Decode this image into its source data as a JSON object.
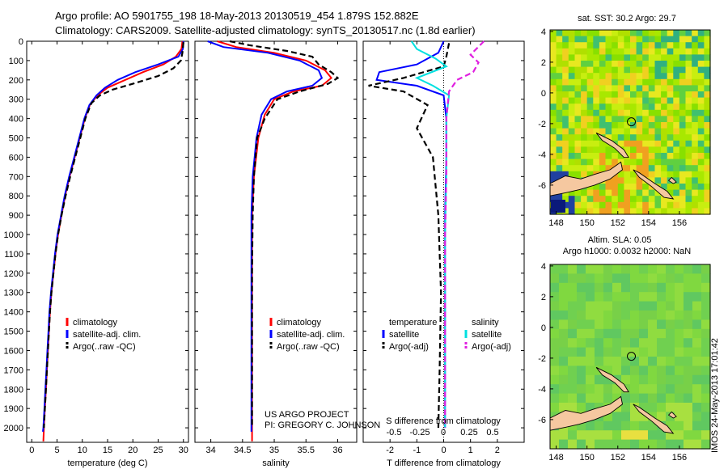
{
  "header": {
    "line1": "Argo profile: AO 5901755_198 18-May-2013 20130519_454 1.879S 152.882E",
    "line2": "Climatology: CARS2009. Satellite-adjusted climatology: synTS_20130517.nc (1.8d earlier)"
  },
  "colors": {
    "climatology": "#ff0000",
    "satellite": "#0000ff",
    "argo": "#000000",
    "cyan": "#00e0e0",
    "magenta": "#e020e0",
    "land": "#f5c8a0"
  },
  "chart_data": [
    {
      "type": "line",
      "panel": "temperature",
      "xlabel": "temperature (deg C)",
      "ylabel": "",
      "xlim": [
        -1,
        31
      ],
      "ylim": [
        0,
        2075
      ],
      "y_inverted": true,
      "xticks": [
        0,
        5,
        10,
        15,
        20,
        25,
        30
      ],
      "yticks": [
        0,
        100,
        200,
        300,
        400,
        500,
        600,
        700,
        800,
        900,
        1000,
        1100,
        1200,
        1300,
        1400,
        1500,
        1600,
        1700,
        1800,
        1900,
        2000
      ],
      "legend": [
        "climatology",
        "satellite-adj. clim.",
        "Argo(..raw -QC)"
      ],
      "series": [
        {
          "name": "climatology",
          "color": "#ff0000",
          "dash": "solid",
          "points": [
            [
              29.8,
              0
            ],
            [
              29.6,
              40
            ],
            [
              28.5,
              80
            ],
            [
              26,
              120
            ],
            [
              22,
              160
            ],
            [
              18.5,
              200
            ],
            [
              15,
              240
            ],
            [
              13,
              280
            ],
            [
              11.5,
              330
            ],
            [
              10.5,
              400
            ],
            [
              9.5,
              500
            ],
            [
              8.5,
              600
            ],
            [
              7.5,
              700
            ],
            [
              6.6,
              800
            ],
            [
              5.9,
              900
            ],
            [
              5.2,
              1000
            ],
            [
              4.7,
              1100
            ],
            [
              4.3,
              1200
            ],
            [
              3.9,
              1300
            ],
            [
              3.6,
              1400
            ],
            [
              3.4,
              1500
            ],
            [
              3.2,
              1600
            ],
            [
              3.0,
              1700
            ],
            [
              2.8,
              1800
            ],
            [
              2.6,
              1900
            ],
            [
              2.4,
              2000
            ],
            [
              2.3,
              2070
            ]
          ]
        },
        {
          "name": "satellite-adj. clim.",
          "color": "#0000ff",
          "dash": "solid",
          "points": [
            [
              30,
              0
            ],
            [
              29.9,
              40
            ],
            [
              29,
              80
            ],
            [
              25,
              120
            ],
            [
              20.5,
              160
            ],
            [
              17,
              200
            ],
            [
              14.5,
              240
            ],
            [
              12.8,
              280
            ],
            [
              11.4,
              330
            ],
            [
              10.4,
              400
            ],
            [
              9.4,
              500
            ],
            [
              8.4,
              600
            ],
            [
              7.4,
              700
            ],
            [
              6.5,
              800
            ],
            [
              5.8,
              900
            ],
            [
              5.1,
              1000
            ],
            [
              4.6,
              1100
            ],
            [
              4.2,
              1200
            ],
            [
              3.8,
              1300
            ],
            [
              3.5,
              1400
            ],
            [
              3.3,
              1500
            ],
            [
              3.1,
              1600
            ],
            [
              2.9,
              1700
            ],
            [
              2.7,
              1800
            ],
            [
              2.5,
              1900
            ],
            [
              2.3,
              2000
            ],
            [
              2.2,
              2020
            ]
          ]
        },
        {
          "name": "Argo(..raw -QC)",
          "color": "#000000",
          "dash": "dashed",
          "points": [
            [
              30,
              5
            ],
            [
              29.8,
              60
            ],
            [
              29.5,
              100
            ],
            [
              28,
              140
            ],
            [
              25,
              180
            ],
            [
              20,
              220
            ],
            [
              16,
              250
            ],
            [
              13.5,
              280
            ],
            [
              11.8,
              320
            ],
            [
              10.6,
              400
            ],
            [
              9.6,
              500
            ],
            [
              8.6,
              600
            ],
            [
              7.6,
              700
            ],
            [
              6.7,
              800
            ],
            [
              5.9,
              900
            ],
            [
              5.2,
              1000
            ],
            [
              4.7,
              1100
            ],
            [
              4.3,
              1200
            ],
            [
              3.9,
              1300
            ],
            [
              3.6,
              1400
            ],
            [
              3.4,
              1500
            ],
            [
              3.2,
              1600
            ],
            [
              3.0,
              1700
            ],
            [
              2.8,
              1800
            ],
            [
              2.6,
              1900
            ],
            [
              2.4,
              2000
            ]
          ]
        }
      ]
    },
    {
      "type": "line",
      "panel": "salinity",
      "xlabel": "salinity",
      "xlim": [
        33.75,
        36.3
      ],
      "ylim": [
        0,
        2075
      ],
      "y_inverted": true,
      "xticks": [
        34,
        34.5,
        35,
        35.5,
        36
      ],
      "legend": [
        "climatology",
        "satellite-adj. clim.",
        "Argo(..raw -QC)"
      ],
      "series": [
        {
          "name": "climatology",
          "color": "#ff0000",
          "dash": "solid",
          "points": [
            [
              34.1,
              0
            ],
            [
              34.4,
              30
            ],
            [
              35.0,
              60
            ],
            [
              35.5,
              100
            ],
            [
              35.8,
              150
            ],
            [
              35.9,
              190
            ],
            [
              35.75,
              230
            ],
            [
              35.3,
              260
            ],
            [
              35.0,
              300
            ],
            [
              34.85,
              380
            ],
            [
              34.75,
              500
            ],
            [
              34.68,
              700
            ],
            [
              34.65,
              900
            ],
            [
              34.65,
              1200
            ],
            [
              34.65,
              1500
            ],
            [
              34.65,
              1800
            ],
            [
              34.65,
              2070
            ]
          ]
        },
        {
          "name": "satellite-adj. clim.",
          "color": "#0000ff",
          "dash": "solid",
          "points": [
            [
              33.95,
              0
            ],
            [
              34.2,
              30
            ],
            [
              34.9,
              60
            ],
            [
              35.4,
              100
            ],
            [
              35.7,
              150
            ],
            [
              35.75,
              190
            ],
            [
              35.6,
              230
            ],
            [
              35.2,
              260
            ],
            [
              34.95,
              300
            ],
            [
              34.8,
              380
            ],
            [
              34.72,
              500
            ],
            [
              34.66,
              700
            ],
            [
              34.64,
              900
            ],
            [
              34.64,
              1200
            ],
            [
              34.64,
              1500
            ],
            [
              34.64,
              1800
            ],
            [
              34.64,
              2020
            ]
          ]
        },
        {
          "name": "Argo(..raw -QC)",
          "color": "#000000",
          "dash": "dashed",
          "points": [
            [
              34.3,
              0
            ],
            [
              34.6,
              20
            ],
            [
              35.2,
              50
            ],
            [
              35.6,
              80
            ],
            [
              35.7,
              120
            ],
            [
              35.9,
              160
            ],
            [
              36.0,
              190
            ],
            [
              35.85,
              220
            ],
            [
              35.4,
              260
            ],
            [
              35.05,
              300
            ],
            [
              34.85,
              400
            ],
            [
              34.73,
              500
            ],
            [
              34.68,
              700
            ],
            [
              34.66,
              900
            ],
            [
              34.65,
              1200
            ],
            [
              34.65,
              1500
            ],
            [
              34.65,
              1800
            ],
            [
              34.65,
              2000
            ]
          ]
        }
      ]
    },
    {
      "type": "line",
      "panel": "difference",
      "xlabel": "T difference from climatology",
      "xlabel_top": "S difference from climatology",
      "xlim": [
        -3,
        3
      ],
      "ylim": [
        0,
        2075
      ],
      "y_inverted": true,
      "xticks": [
        -2,
        -1,
        0,
        1,
        2
      ],
      "xtick_labels_S": [
        "-0.5",
        "-0.25",
        "0",
        "0.25",
        "0.5"
      ],
      "legend_left_title": "temperature",
      "legend_right_title": "salinity",
      "legend": [
        "satellite",
        "Argo(-adj)",
        "satellite",
        "Argo(-adj)"
      ],
      "series": [
        {
          "name": "T satellite",
          "color": "#0000ff",
          "dash": "solid",
          "points": [
            [
              0,
              0
            ],
            [
              -0.2,
              60
            ],
            [
              -1,
              120
            ],
            [
              -2.4,
              160
            ],
            [
              -2.5,
              200
            ],
            [
              -1,
              230
            ],
            [
              0,
              280
            ],
            [
              0.1,
              400
            ],
            [
              0.1,
              600
            ],
            [
              0.05,
              900
            ],
            [
              0.05,
              1400
            ],
            [
              0.05,
              2000
            ]
          ]
        },
        {
          "name": "T Argo(-adj)",
          "color": "#000000",
          "dash": "dashed",
          "points": [
            [
              0.2,
              10
            ],
            [
              0.1,
              80
            ],
            [
              0,
              130
            ],
            [
              -1.5,
              190
            ],
            [
              -2.8,
              230
            ],
            [
              -1.5,
              260
            ],
            [
              -0.6,
              330
            ],
            [
              -1,
              450
            ],
            [
              -0.4,
              600
            ],
            [
              -0.2,
              900
            ],
            [
              -0.1,
              1300
            ],
            [
              -0.15,
              1700
            ],
            [
              -0.2,
              2000
            ]
          ]
        },
        {
          "name": "S satellite",
          "color": "#00e0e0",
          "dash": "solid",
          "points": [
            [
              -1.2,
              0
            ],
            [
              -1.0,
              40
            ],
            [
              -0.3,
              90
            ],
            [
              0.1,
              130
            ],
            [
              -1.0,
              190
            ],
            [
              -0.4,
              230
            ],
            [
              0.2,
              280
            ],
            [
              0.1,
              400
            ],
            [
              0.1,
              700
            ],
            [
              0.05,
              1000
            ],
            [
              0.05,
              1500
            ],
            [
              0.05,
              2000
            ]
          ]
        },
        {
          "name": "S Argo(-adj)",
          "color": "#e020e0",
          "dash": "dashed",
          "points": [
            [
              1.5,
              0
            ],
            [
              1.0,
              70
            ],
            [
              1.3,
              110
            ],
            [
              1.1,
              160
            ],
            [
              0.5,
              200
            ],
            [
              0.2,
              260
            ],
            [
              0.1,
              400
            ],
            [
              0.1,
              700
            ],
            [
              0.05,
              1000
            ],
            [
              0.05,
              1500
            ],
            [
              0.05,
              2000
            ]
          ]
        }
      ]
    },
    {
      "type": "heatmap",
      "panel": "map-sst",
      "title": "sat. SST: 30.2 Argo: 29.7",
      "xlim": [
        147.6,
        158
      ],
      "ylim": [
        -7.9,
        4.1
      ],
      "xticks": [
        148,
        150,
        152,
        154,
        156
      ],
      "yticks": [
        4,
        2,
        0,
        -2,
        -4,
        -6
      ],
      "marker": {
        "lon": 152.88,
        "lat": -1.88
      }
    },
    {
      "type": "heatmap",
      "panel": "map-sla",
      "title_line1": "Altim. SLA: 0.05",
      "title_line2": "Argo h1000: 0.0032 h2000: NaN",
      "xlim": [
        147.6,
        158
      ],
      "ylim": [
        -7.9,
        4.1
      ],
      "xticks": [
        148,
        150,
        152,
        154,
        156
      ],
      "yticks": [
        4,
        2,
        0,
        -2,
        -4,
        -6
      ],
      "marker": {
        "lon": 152.88,
        "lat": -1.88
      }
    }
  ],
  "credits": {
    "line1": "US ARGO PROJECT",
    "line2": "PI: GREGORY C. JOHNSON"
  },
  "timestamp": "IMOS 24-May-2013 17:01:42"
}
